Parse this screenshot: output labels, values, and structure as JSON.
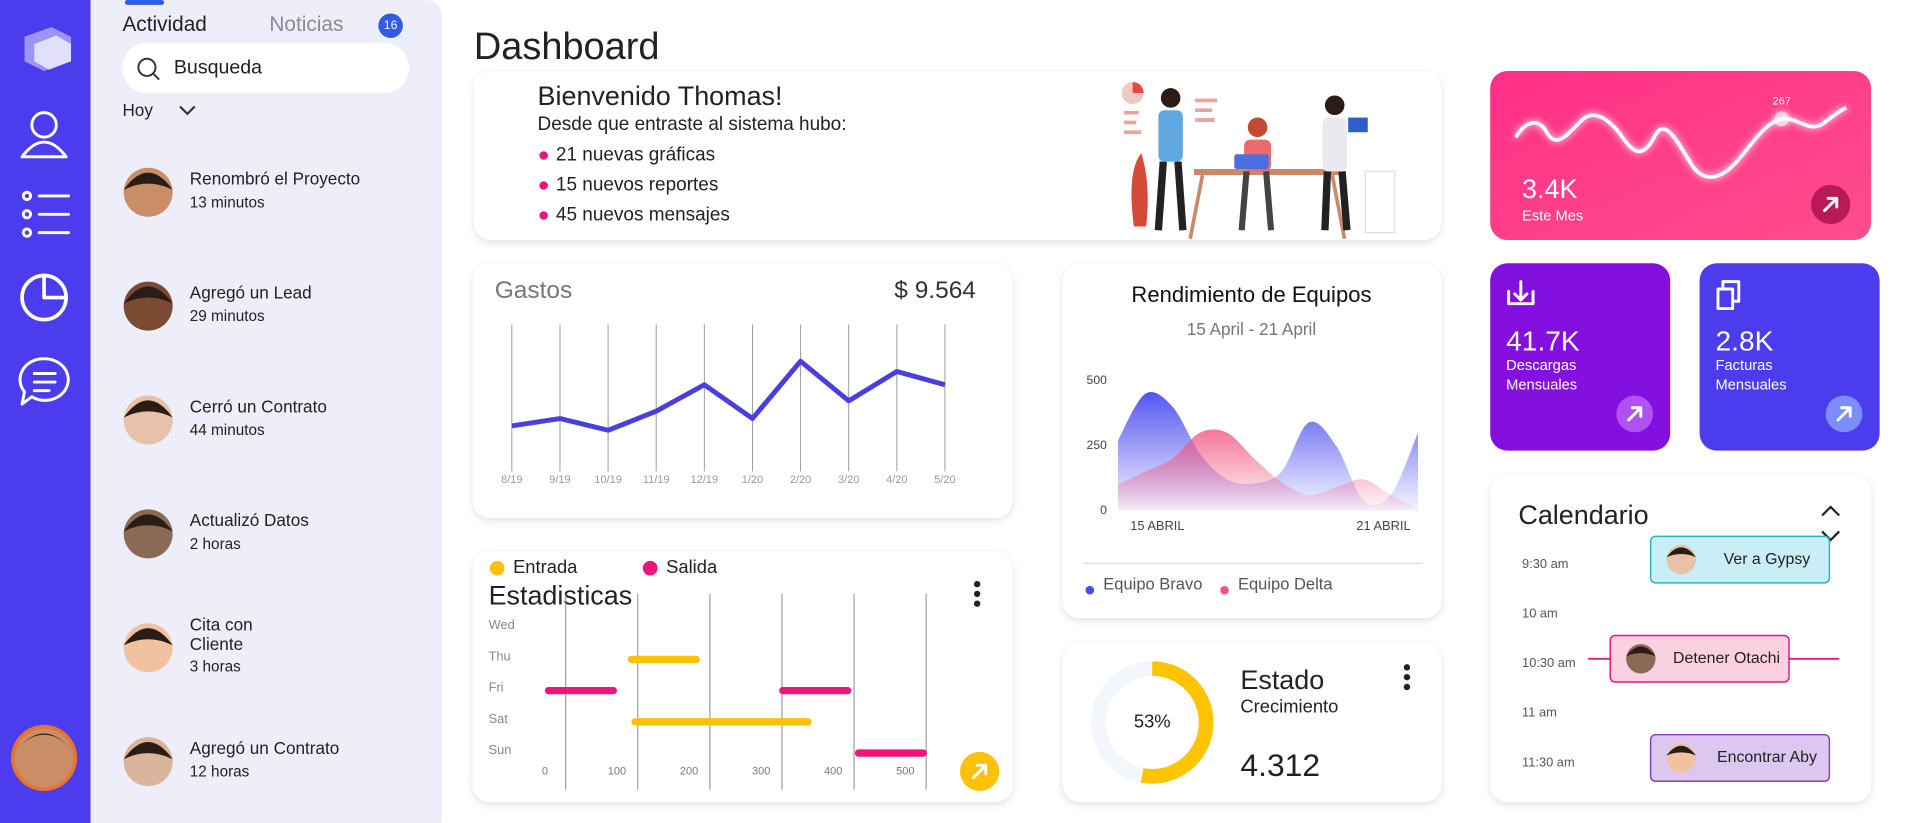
{
  "activity": {
    "tabs": [
      "Actividad",
      "Noticias"
    ],
    "badge": 16,
    "search": "Busqueda",
    "filter": "Hoy",
    "items": [
      {
        "title": [
          "Renombró el Proyecto"
        ],
        "time": "13 minutos"
      },
      {
        "title": [
          "Agregó un Lead"
        ],
        "time": "29 minutos"
      },
      {
        "title": [
          "Cerró un Contrato"
        ],
        "time": "44 minutos"
      },
      {
        "title": [
          "Actualizó Datos"
        ],
        "time": "2 horas"
      },
      {
        "title": [
          "Cita con",
          "Cliente"
        ],
        "time": "3 horas"
      },
      {
        "title": [
          "Agregó un Contrato"
        ],
        "time": "12 horas"
      }
    ]
  },
  "dashboard": {
    "title": "Dashboard"
  },
  "welcome": {
    "title": "Bienvenido Thomas!",
    "subtitle": "Desde que entraste al sistema hubo:",
    "items": [
      "21 nuevas gráficas",
      "15 nuevos reportes",
      "45 nuevos mensajes"
    ]
  },
  "monthly": {
    "value": "3.4K",
    "label": "Este Mes",
    "peak_label": "267"
  },
  "downloads": {
    "value": "41.7K",
    "label_lines": [
      "Descargas",
      "Mensuales"
    ]
  },
  "invoices": {
    "value": "2.8K",
    "label_lines": [
      "Facturas",
      "Mensuales"
    ]
  },
  "chart_data": [
    {
      "type": "line",
      "title": "Gastos",
      "total": "$ 9.564",
      "categories": [
        "8/19",
        "9/19",
        "10/19",
        "11/19",
        "12/19",
        "1/20",
        "2/20",
        "3/20",
        "4/20",
        "5/20"
      ],
      "values": [
        31,
        36,
        28,
        41,
        59,
        36,
        75,
        48,
        68,
        59
      ],
      "ylim": [
        0,
        100
      ],
      "color": "#4a3ee0"
    },
    {
      "type": "area",
      "title": "Rendimiento de Equipos",
      "subtitle": "15 April - 21 April",
      "categories": [
        "15 ABRIL",
        null,
        null,
        null,
        null,
        null,
        null,
        null,
        null,
        null,
        null,
        "21 ABRIL"
      ],
      "ylim": [
        0,
        500
      ],
      "yticks": [
        0,
        250,
        500
      ],
      "series": [
        {
          "name": "Equipo Bravo",
          "color": "#4a4df0",
          "values": [
            270,
            450,
            400,
            220,
            120,
            105,
            150,
            340,
            250,
            40,
            60,
            300
          ]
        },
        {
          "name": "Equipo Delta",
          "color": "#f2567f",
          "values": [
            100,
            150,
            200,
            300,
            300,
            200,
            110,
            60,
            90,
            120,
            60,
            10
          ]
        }
      ]
    },
    {
      "type": "range-bar",
      "title": "Estadisticas",
      "categories": [
        "Wed",
        "Thu",
        "Fri",
        "Sat",
        "Sun"
      ],
      "xlim": [
        0,
        530
      ],
      "xticks": [
        0,
        100,
        200,
        300,
        400,
        500
      ],
      "series": [
        {
          "name": "Entrada",
          "color": "#ffc107",
          "bars": [
            {
              "category": "Thu",
              "range": [
                115,
                215
              ]
            },
            {
              "category": "Sat",
              "range": [
                120,
                370
              ]
            }
          ]
        },
        {
          "name": "Salida",
          "color": "#f0147a",
          "bars": [
            {
              "category": "Fri",
              "range": [
                0,
                100
              ]
            },
            {
              "category": "Fri",
              "range": [
                325,
                425
              ]
            },
            {
              "category": "Sun",
              "range": [
                430,
                530
              ]
            }
          ]
        }
      ]
    },
    {
      "type": "donut",
      "title": "Estado",
      "subtitle": "Crecimiento",
      "total": "4.312",
      "values": [
        53
      ],
      "value_labels": [
        "53%"
      ],
      "color": "#ffc400"
    }
  ],
  "calendar": {
    "title": "Calendario",
    "times": [
      "9:30 am",
      "10 am",
      "10:30 am",
      "11 am",
      "11:30 am"
    ],
    "events": [
      {
        "label": "Ver a Gypsy",
        "time": "9:30 am",
        "fill": "#c9eef6",
        "stroke": "#2ab3d0"
      },
      {
        "label": "Detener Otachi",
        "time": "10:30 am",
        "fill": "#fbd0e0",
        "stroke": "#e8177a"
      },
      {
        "label": "Encontrar Aby",
        "time": "11:30 am",
        "fill": "#dcc7f0",
        "stroke": "#8a3fb8"
      }
    ]
  }
}
